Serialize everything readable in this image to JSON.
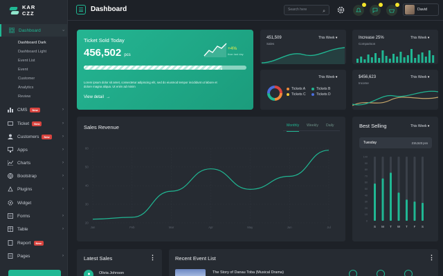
{
  "brand": {
    "name": "KAR\nCZZ"
  },
  "sidebar": {
    "items": [
      {
        "label": "Dashboard"
      },
      {
        "label": "CMS",
        "badge": "New"
      },
      {
        "label": "Ticket",
        "badge": "New"
      },
      {
        "label": "Customers",
        "badge": "New"
      },
      {
        "label": "Apps"
      },
      {
        "label": "Charts"
      },
      {
        "label": "Bootstrap"
      },
      {
        "label": "Plugins"
      },
      {
        "label": "Widget"
      },
      {
        "label": "Forms"
      },
      {
        "label": "Table"
      },
      {
        "label": "Report",
        "badge": "New"
      },
      {
        "label": "Pages"
      }
    ],
    "subitems": [
      "Dashboard Dark",
      "Dashboard Light",
      "Event List",
      "Event",
      "Customer",
      "Analytics",
      "Review"
    ]
  },
  "header": {
    "title": "Dashboard",
    "search_placeholder": "Search here",
    "user": "David"
  },
  "ticket": {
    "title": "Ticket Sold Today",
    "value": "456,502",
    "unit": "pcs",
    "change": "+4%",
    "change_sub": "than last day",
    "progress": 0.85,
    "desc": "Lorem ipsum dolor sit amet, consectetur adipiscing elit, sed do eiusmod tempor incididunt ut labore et dolore magna aliqua. Ut enim ad minim",
    "view": "View detail"
  },
  "sales_mini": {
    "value": "451,509",
    "label": "Sales",
    "period": "This Week"
  },
  "increase_mini": {
    "value": "Increase 25%",
    "label": "Comparison",
    "period": "This Week"
  },
  "tickets_pie": {
    "period": "This Week",
    "legend": [
      "Tickets A",
      "Tickets B",
      "Tickets C",
      "Tickets D"
    ]
  },
  "income_mini": {
    "value": "$456,623",
    "label": "Income",
    "period": "This Week"
  },
  "revenue": {
    "title": "Sales Revenue",
    "tabs": [
      "Monthly",
      "Weekly",
      "Daily"
    ]
  },
  "best": {
    "title": "Best Selling",
    "period": "This Week",
    "day": "Tuesday",
    "value": "215,523 pcs",
    "days": [
      "S",
      "M",
      "T",
      "W",
      "T",
      "F",
      "S"
    ]
  },
  "latest": {
    "title": "Latest Sales",
    "first": "Olivia Johnson"
  },
  "recent": {
    "title": "Recent Event List",
    "first": "The Story of Danau Toba (Musical Drama)"
  },
  "chart_data": [
    {
      "type": "line",
      "title": "Sales Revenue",
      "x": [
        "Jan",
        "Feb",
        "Mar",
        "Apr",
        "May",
        "Jun",
        "Jul"
      ],
      "y_ticks": [
        20,
        30,
        40,
        50,
        60
      ],
      "ylim": [
        20,
        60
      ],
      "values": [
        22,
        23,
        37,
        49,
        38,
        45,
        59
      ],
      "grid": true
    },
    {
      "type": "bar",
      "title": "Best Selling",
      "categories": [
        "S",
        "M",
        "T",
        "W",
        "T",
        "F",
        "S"
      ],
      "y_ticks": [
        0,
        10,
        20,
        30,
        40,
        50,
        60,
        70,
        80,
        90,
        100
      ],
      "values": [
        58,
        66,
        75,
        44,
        33,
        30,
        28
      ],
      "ylim": [
        0,
        100
      ]
    }
  ],
  "colors": {
    "accent": "#20b793",
    "dark": "#1d2127",
    "card": "#262b32",
    "yellow": "#f5e52a",
    "red": "#d8443f"
  }
}
